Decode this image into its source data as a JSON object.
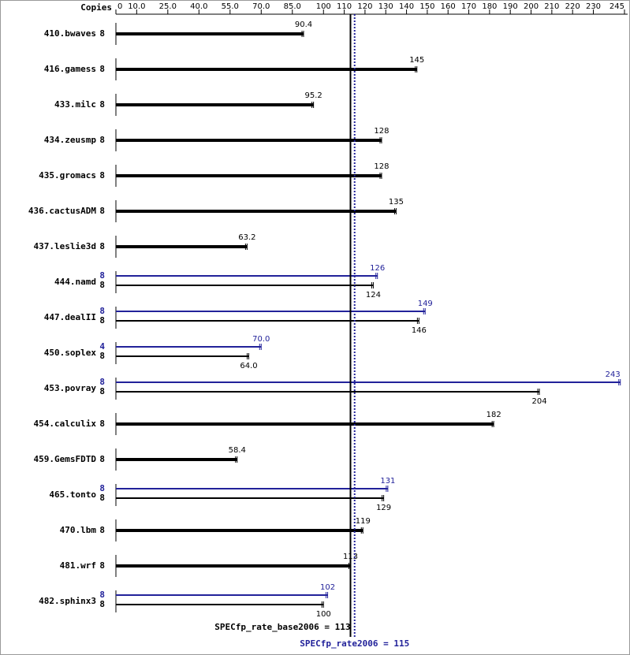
{
  "chart_data": {
    "type": "bar",
    "copies_label": "Copies",
    "categories": [
      "410.bwaves",
      "416.gamess",
      "433.milc",
      "434.zeusmp",
      "435.gromacs",
      "436.cactusADM",
      "437.leslie3d",
      "444.namd",
      "447.dealII",
      "450.soplex",
      "453.povray",
      "454.calculix",
      "459.GemsFDTD",
      "465.tonto",
      "470.lbm",
      "481.wrf",
      "482.sphinx3"
    ],
    "series": [
      {
        "color": "#000000",
        "copies": [
          8,
          8,
          8,
          8,
          8,
          8,
          8,
          8,
          8,
          8,
          8,
          8,
          8,
          8,
          8,
          8,
          8
        ],
        "values": [
          90.4,
          145,
          95.2,
          128,
          128,
          135,
          63.2,
          124,
          146,
          64.0,
          204,
          182,
          58.4,
          129,
          119,
          113,
          100
        ],
        "value_labels": [
          "90.4",
          "145",
          "95.2",
          "128",
          "128",
          "135",
          "63.2",
          "124",
          "146",
          "64.0",
          "204",
          "182",
          "58.4",
          "129",
          "119",
          "113",
          "100"
        ]
      },
      {
        "color": "#22229a",
        "copies": [
          null,
          null,
          null,
          null,
          null,
          null,
          null,
          8,
          8,
          4,
          8,
          null,
          null,
          8,
          null,
          null,
          8
        ],
        "values": [
          null,
          null,
          null,
          null,
          null,
          null,
          null,
          126,
          149,
          70.0,
          243,
          null,
          null,
          131,
          null,
          null,
          102
        ],
        "value_labels": [
          null,
          null,
          null,
          null,
          null,
          null,
          null,
          "126",
          "149",
          "70.0",
          "243",
          null,
          null,
          "131",
          null,
          null,
          "102"
        ]
      }
    ],
    "xlim": [
      0,
      245
    ],
    "xticks": [
      0,
      {
        "value": 10,
        "label": "10.0"
      },
      {
        "value": 25,
        "label": "25.0"
      },
      {
        "value": 40,
        "label": "40.0"
      },
      {
        "value": 55,
        "label": "55.0"
      },
      {
        "value": 70,
        "label": "70.0"
      },
      {
        "value": 85,
        "label": "85.0"
      },
      100,
      110,
      120,
      130,
      140,
      150,
      160,
      170,
      180,
      190,
      200,
      210,
      220,
      230,
      245
    ],
    "base_line": {
      "value": 113,
      "label": "SPECfp_rate_base2006 = 113",
      "color": "#000000"
    },
    "peak_line": {
      "value": 115,
      "label": "SPECfp_rate2006 = 115",
      "color": "#22229a"
    }
  }
}
